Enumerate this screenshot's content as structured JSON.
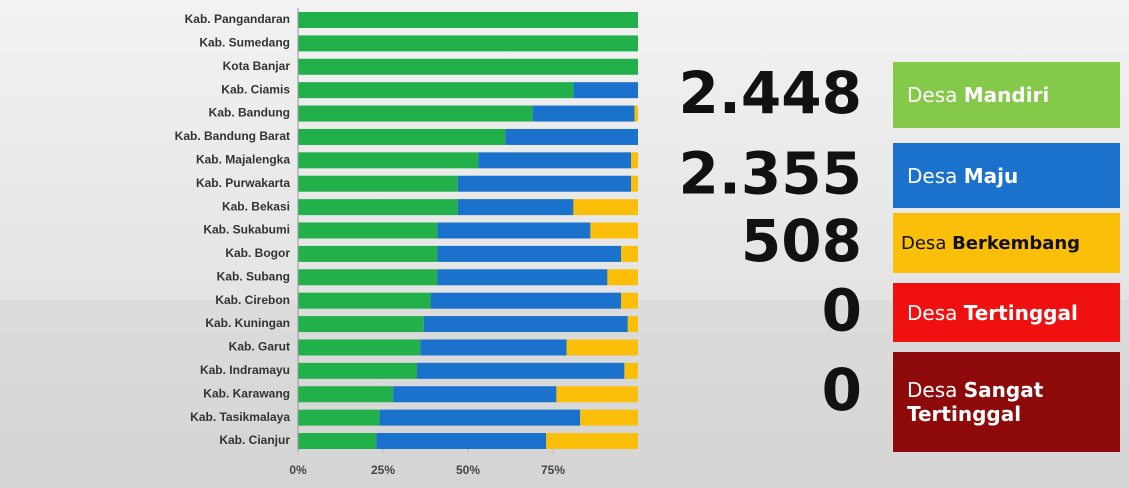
{
  "chart_data": {
    "type": "stacked-bar-horizontal",
    "categories": [
      "Kab. Pangandaran",
      "Kab. Sumedang",
      "Kota Banjar",
      "Kab. Ciamis",
      "Kab. Bandung",
      "Kab. Bandung Barat",
      "Kab. Majalengka",
      "Kab. Purwakarta",
      "Kab. Bekasi",
      "Kab. Sukabumi",
      "Kab. Bogor",
      "Kab. Subang",
      "Kab. Cirebon",
      "Kab. Kuningan",
      "Kab. Garut",
      "Kab. Indramayu",
      "Kab. Karawang",
      "Kab. Tasikmalaya",
      "Kab. Cianjur"
    ],
    "series": [
      {
        "name": "Desa Mandiri",
        "color": "#22b04b",
        "legend_color": "#84c94a",
        "values": [
          100,
          100,
          100,
          81,
          69,
          61,
          53,
          47,
          47,
          41,
          41,
          41,
          39,
          37,
          36,
          35,
          28,
          24,
          23
        ]
      },
      {
        "name": "Desa Maju",
        "color": "#1a72cc",
        "legend_color": "#1a72cc",
        "values": [
          0,
          0,
          0,
          19,
          30,
          39,
          45,
          51,
          34,
          45,
          54,
          50,
          56,
          60,
          43,
          61,
          48,
          59,
          50
        ]
      },
      {
        "name": "Desa Berkembang",
        "color": "#fbbf0a",
        "legend_color": "#fbbf0a",
        "values": [
          0,
          0,
          0,
          0,
          1,
          0,
          2,
          2,
          19,
          14,
          5,
          9,
          5,
          3,
          21,
          4,
          24,
          17,
          27
        ]
      },
      {
        "name": "Desa Tertinggal",
        "color": "#f01010",
        "legend_color": "#f01010",
        "values": [
          0,
          0,
          0,
          0,
          0,
          0,
          0,
          0,
          0,
          0,
          0,
          0,
          0,
          0,
          0,
          0,
          0,
          0,
          0
        ]
      },
      {
        "name": "Desa Sangat Tertinggal",
        "color": "#8e0a0a",
        "legend_color": "#8e0a0a",
        "values": [
          0,
          0,
          0,
          0,
          0,
          0,
          0,
          0,
          0,
          0,
          0,
          0,
          0,
          0,
          0,
          0,
          0,
          0,
          0
        ]
      }
    ],
    "totals": {
      "values": [
        2448,
        2355,
        508,
        0,
        0
      ],
      "value_labels": [
        "2.448",
        "2.355",
        "508",
        "0",
        "0"
      ]
    },
    "xlim": [
      0,
      100
    ],
    "xticks": [
      {
        "value": 0,
        "label": "0%"
      },
      {
        "value": 25,
        "label": "25%"
      },
      {
        "value": 50,
        "label": "50%"
      },
      {
        "value": 75,
        "label": "75%"
      }
    ]
  }
}
